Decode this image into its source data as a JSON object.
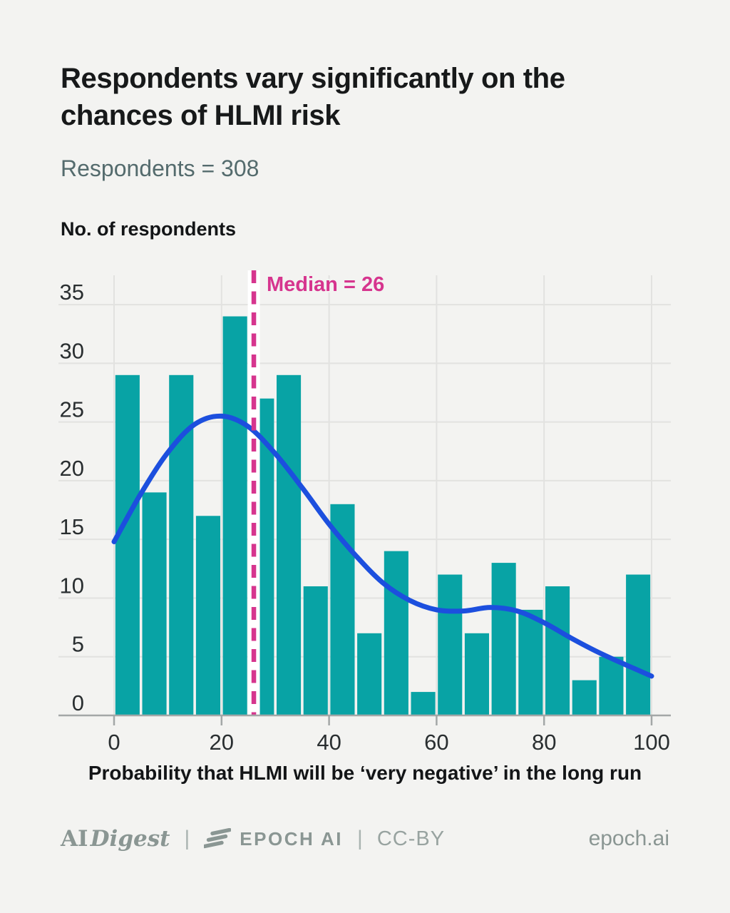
{
  "header": {
    "title_lines": [
      "Respondents vary significantly on the",
      "chances of HLMI risk"
    ],
    "subtitle": "Respondents = 308"
  },
  "chart_data": {
    "type": "bar",
    "title": "Respondents vary significantly on the chances of HLMI risk",
    "subtitle": "Respondents = 308",
    "ylabel": "No. of respondents",
    "xlabel": "Probability that HLMI will be ‘very negative’ in the long run",
    "xlim": [
      0,
      100
    ],
    "ylim": [
      0,
      35
    ],
    "xticks": [
      0,
      20,
      40,
      60,
      80,
      100
    ],
    "yticks": [
      0,
      5,
      10,
      15,
      20,
      25,
      30,
      35
    ],
    "grid": true,
    "total_respondents": 308,
    "bin_width": 5,
    "bin_starts": [
      0,
      5,
      10,
      15,
      20,
      25,
      30,
      35,
      40,
      45,
      50,
      55,
      60,
      65,
      70,
      75,
      80,
      85,
      90,
      95
    ],
    "counts": [
      29,
      19,
      29,
      17,
      34,
      27,
      29,
      11,
      18,
      7,
      14,
      2,
      12,
      7,
      13,
      9,
      11,
      3,
      5,
      12
    ],
    "median": {
      "value": 26,
      "label": "Median = 26"
    },
    "density_curve": {
      "x": [
        0,
        5,
        10,
        15,
        20,
        25,
        30,
        35,
        40,
        45,
        50,
        55,
        60,
        65,
        70,
        75,
        80,
        85,
        90,
        95,
        100
      ],
      "y": [
        14.8,
        18.9,
        22.4,
        24.8,
        25.5,
        24.6,
        22.3,
        19.4,
        16.3,
        13.6,
        11.3,
        9.8,
        9.0,
        8.9,
        9.2,
        8.9,
        7.9,
        6.6,
        5.4,
        4.35,
        3.35
      ]
    },
    "colors": {
      "bar": "#08a3a5",
      "curve": "#1c4fde",
      "median": "#d6358e",
      "median_halo": "#ffffff",
      "grid": "#e2e2e0",
      "axis": "#a3a7a7",
      "tick_label": "#292e30",
      "background": "#f3f3f1"
    }
  },
  "footer": {
    "ai_digest_regular": "AI",
    "ai_digest_italic": "Digest",
    "separator1": "|",
    "epoch_wordmark": "EPOCH AI",
    "separator2": "|",
    "license": "CC-BY",
    "site": "epoch.ai"
  }
}
